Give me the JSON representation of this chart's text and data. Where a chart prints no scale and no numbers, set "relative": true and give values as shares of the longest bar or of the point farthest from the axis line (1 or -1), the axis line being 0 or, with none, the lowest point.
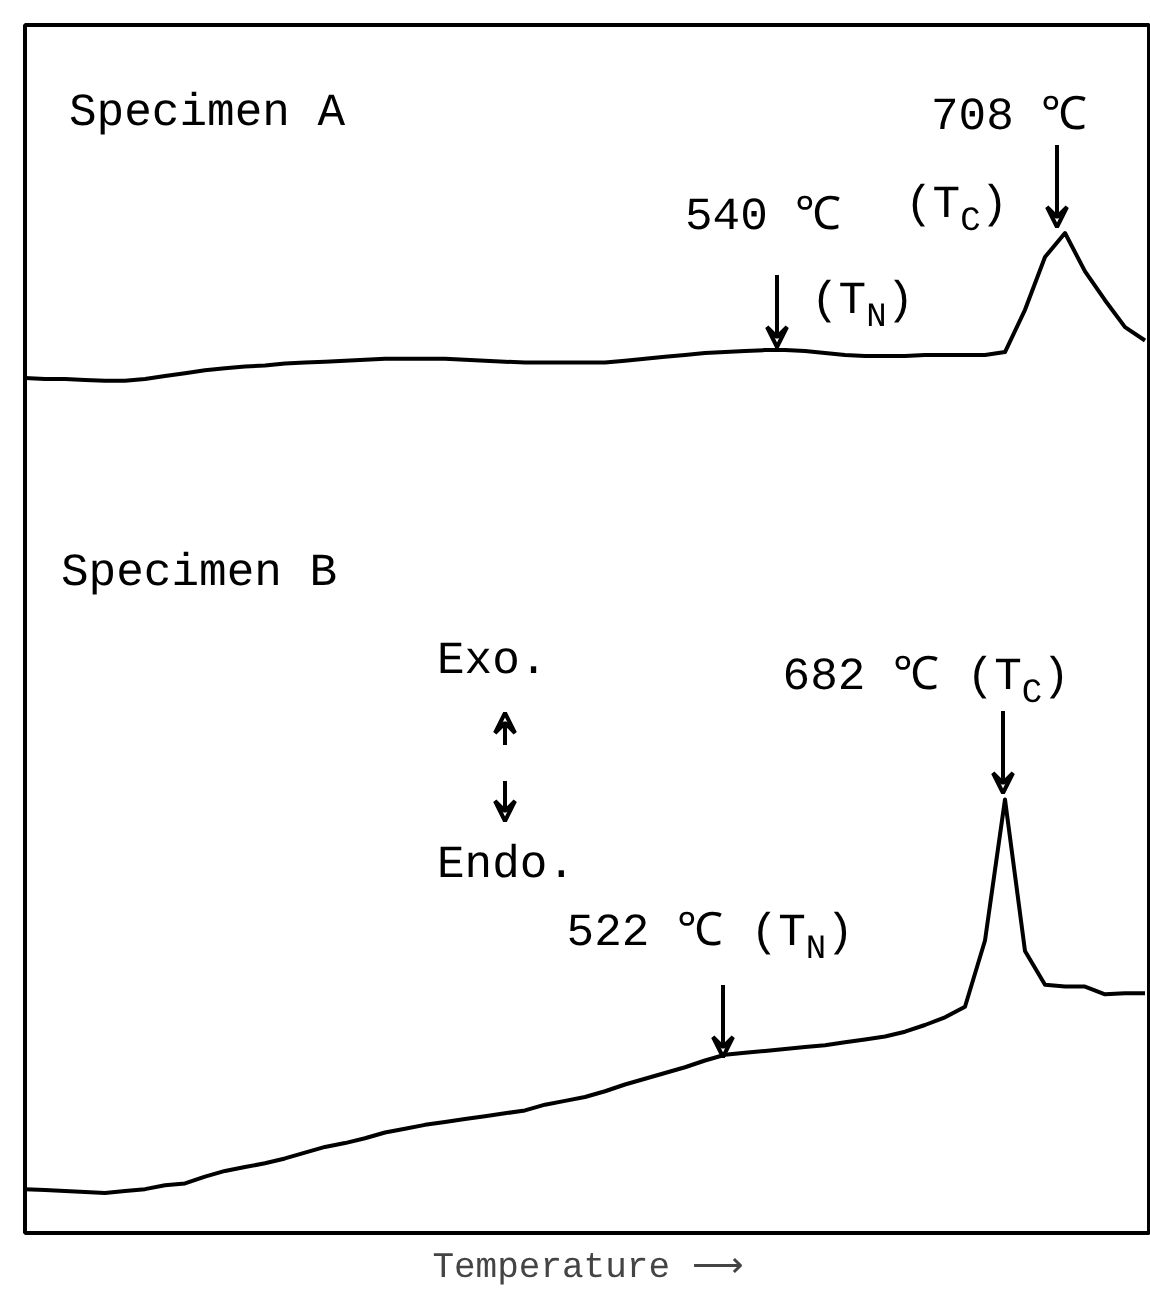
{
  "chart_data": {
    "type": "line",
    "relative": true,
    "xlabel": "Temperature ⟶",
    "grid": false,
    "categories": [
      null,
      null,
      null,
      null,
      null,
      null,
      null,
      null,
      null,
      null,
      null,
      null,
      null,
      null,
      null,
      null,
      null,
      null,
      null,
      null,
      null,
      null,
      null,
      null,
      null,
      null,
      null,
      null,
      null,
      null,
      null,
      null,
      null,
      null,
      null,
      null,
      null,
      null,
      null,
      null,
      null,
      null,
      null,
      null,
      null,
      null,
      null,
      null,
      null,
      null,
      null,
      null,
      null,
      null,
      null,
      null,
      null
    ],
    "series": [
      {
        "color": "#000000",
        "values": [
          0.849,
          0.848,
          0.848,
          0.847,
          0.846,
          0.846,
          0.848,
          0.851,
          0.854,
          0.857,
          0.859,
          0.861,
          0.862,
          0.864,
          0.865,
          0.866,
          0.867,
          0.868,
          0.869,
          0.869,
          0.869,
          0.869,
          0.868,
          0.867,
          0.866,
          0.865,
          0.865,
          0.865,
          0.865,
          0.865,
          0.867,
          0.869,
          0.871,
          0.873,
          0.875,
          0.876,
          0.877,
          0.878,
          0.878,
          0.877,
          0.875,
          0.873,
          0.872,
          0.872,
          0.872,
          0.873,
          0.873,
          0.873,
          0.873,
          0.876,
          0.92,
          0.975,
          1.0,
          0.96,
          0.93,
          0.902,
          0.888
        ]
      },
      {
        "color": "#000000",
        "values": [
          0.004,
          0.003,
          0.002,
          0.001,
          0.0,
          0.002,
          0.004,
          0.008,
          0.01,
          0.017,
          0.023,
          0.027,
          0.031,
          0.036,
          0.042,
          0.048,
          0.052,
          0.057,
          0.063,
          0.067,
          0.071,
          0.074,
          0.077,
          0.08,
          0.083,
          0.086,
          0.092,
          0.096,
          0.1,
          0.106,
          0.113,
          0.119,
          0.125,
          0.131,
          0.138,
          0.144,
          0.146,
          0.148,
          0.15,
          0.152,
          0.154,
          0.157,
          0.16,
          0.163,
          0.168,
          0.175,
          0.183,
          0.194,
          0.263,
          0.41,
          0.252,
          0.217,
          0.215,
          0.215,
          0.207,
          0.208,
          0.208
        ]
      }
    ],
    "annotations": [
      "Specimen A",
      "540 ℃",
      "(T$_{N}$)",
      "708 ℃",
      "(T$_{C}$)",
      "Specimen B",
      "Exo.",
      "Endo.",
      "682 ℃ (T$_{C}$)",
      "522 ℃ (T$_{N}$)"
    ]
  }
}
